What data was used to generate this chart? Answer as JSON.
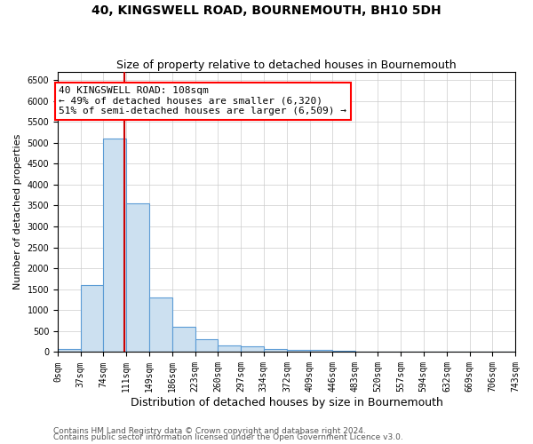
{
  "title": "40, KINGSWELL ROAD, BOURNEMOUTH, BH10 5DH",
  "subtitle": "Size of property relative to detached houses in Bournemouth",
  "xlabel": "Distribution of detached houses by size in Bournemouth",
  "ylabel": "Number of detached properties",
  "bar_edges": [
    0,
    37,
    74,
    111,
    149,
    186,
    223,
    260,
    297,
    334,
    372,
    409,
    446,
    483,
    520,
    557,
    594,
    632,
    669,
    706,
    743
  ],
  "bar_heights": [
    75,
    1600,
    5100,
    3550,
    1300,
    600,
    300,
    150,
    130,
    75,
    50,
    50,
    35,
    0,
    0,
    0,
    0,
    0,
    0,
    0
  ],
  "bar_color": "#cce0f0",
  "bar_edgecolor": "#5b9bd5",
  "vline_x": 108,
  "vline_color": "#cc0000",
  "ylim": [
    0,
    6700
  ],
  "yticks": [
    0,
    500,
    1000,
    1500,
    2000,
    2500,
    3000,
    3500,
    4000,
    4500,
    5000,
    5500,
    6000,
    6500
  ],
  "annotation_line1": "40 KINGSWELL ROAD: 108sqm",
  "annotation_line2": "← 49% of detached houses are smaller (6,320)",
  "annotation_line3": "51% of semi-detached houses are larger (6,509) →",
  "footnote1": "Contains HM Land Registry data © Crown copyright and database right 2024.",
  "footnote2": "Contains public sector information licensed under the Open Government Licence v3.0.",
  "title_fontsize": 10,
  "subtitle_fontsize": 9,
  "xlabel_fontsize": 9,
  "ylabel_fontsize": 8,
  "tick_fontsize": 7,
  "annotation_fontsize": 8,
  "footnote_fontsize": 6.5
}
